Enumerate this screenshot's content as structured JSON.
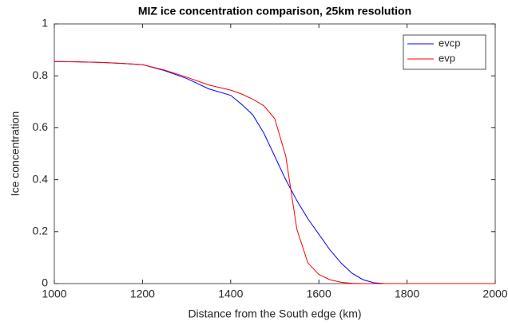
{
  "chart_data": {
    "type": "line",
    "title": "MIZ ice concentration comparison, 25km resolution",
    "xlabel": "Distance from the South edge (km)",
    "ylabel": "Ice concentration",
    "x": [
      1000,
      1050,
      1100,
      1150,
      1200,
      1250,
      1300,
      1350,
      1400,
      1425,
      1450,
      1475,
      1500,
      1525,
      1550,
      1575,
      1600,
      1625,
      1650,
      1675,
      1700,
      1725,
      1750,
      1800,
      1900,
      2000
    ],
    "series": [
      {
        "name": "evcp",
        "color": "#0000ff",
        "values": [
          0.855,
          0.854,
          0.852,
          0.848,
          0.843,
          0.82,
          0.79,
          0.75,
          0.725,
          0.69,
          0.65,
          0.58,
          0.49,
          0.4,
          0.32,
          0.25,
          0.19,
          0.13,
          0.08,
          0.04,
          0.015,
          0.003,
          0,
          0,
          0,
          0
        ]
      },
      {
        "name": "evp",
        "color": "#ff0000",
        "values": [
          0.855,
          0.854,
          0.852,
          0.848,
          0.843,
          0.822,
          0.795,
          0.765,
          0.745,
          0.73,
          0.71,
          0.685,
          0.635,
          0.49,
          0.21,
          0.08,
          0.035,
          0.015,
          0.005,
          0.001,
          0,
          0,
          0,
          0,
          0,
          0
        ]
      }
    ],
    "xlim": [
      1000,
      2000
    ],
    "xticks": [
      1000,
      1200,
      1400,
      1600,
      1800,
      2000
    ],
    "ylim": [
      0,
      1
    ],
    "yticks": [
      0,
      0.2,
      0.4,
      0.6,
      0.8,
      1
    ],
    "legend": "northeast"
  }
}
